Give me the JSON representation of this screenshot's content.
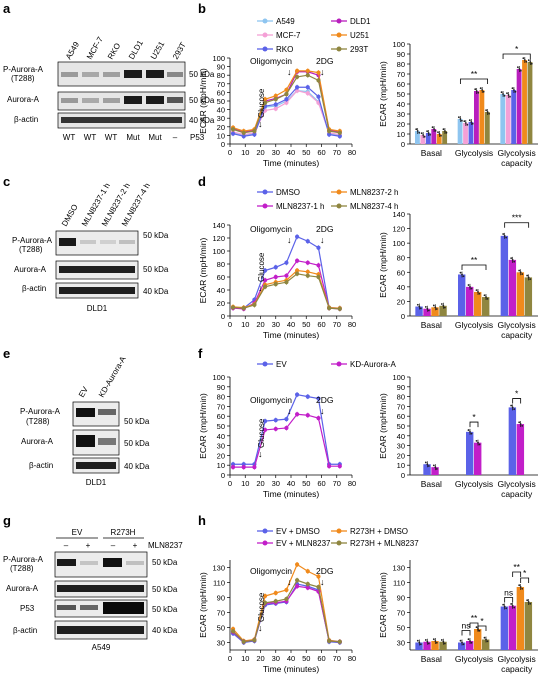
{
  "panel_letters": [
    "a",
    "b",
    "c",
    "d",
    "e",
    "f",
    "g",
    "h"
  ],
  "common": {
    "kda50": "50 kDa",
    "kda40": "40 kDa",
    "ecar_ylabel": "ECAR (mpH/min)",
    "time_xlabel": "Time (minutes)",
    "oligomycin": "Oligomycin",
    "glucose": "Glucose",
    "dg": "2DG",
    "arrow": "↓",
    "basal": "Basal",
    "glycolysis": "Glycolysis",
    "gly_cap_1": "Glycolysis",
    "gly_cap_2": "capacity"
  },
  "blot_a": {
    "lanes": [
      "A549",
      "MCF-7",
      "RKO",
      "DLD1",
      "U251",
      "293T"
    ],
    "labels": [
      "P-Aurora-A",
      "(T288)",
      "Aurora-A",
      "β-actin"
    ],
    "status": [
      "WT",
      "WT",
      "WT",
      "Mut",
      "Mut",
      "–"
    ],
    "p53": "P53"
  },
  "blot_c": {
    "lanes": [
      "DMSO",
      "MLN8237-1 h",
      "MLN8237-2 h",
      "MLN8237-4 h"
    ],
    "labels": [
      "P-Aurora-A",
      "(T288)",
      "Aurora-A",
      "β-actin"
    ],
    "cell": "DLD1"
  },
  "blot_e": {
    "lanes": [
      "EV",
      "KD-Aurora-A"
    ],
    "labels": [
      "P-Aurora-A",
      "(T288)",
      "Aurora-A",
      "β-actin"
    ],
    "cell": "DLD1"
  },
  "blot_g": {
    "groups": [
      "EV",
      "R273H"
    ],
    "mln": "MLN8237",
    "signs": [
      "–",
      "+",
      "–",
      "+"
    ],
    "labels": [
      "P-Aurora-A",
      "(T288)",
      "Aurora-A",
      "P53",
      "β-actin"
    ],
    "cell": "A549"
  },
  "colors": {
    "A549": "#8ec5f0",
    "DLD1": "#b81ebd",
    "MCF-7": "#f4a0d6",
    "U251": "#f08a1c",
    "RKO": "#5b62e8",
    "293T": "#8f8640",
    "blue": "#5b62e8",
    "magenta": "#c21fc9",
    "orange": "#f08a1c",
    "olive": "#8f8640"
  },
  "chart_data": [
    {
      "panel": "b-line",
      "type": "line",
      "legend": [
        "A549",
        "MCF-7",
        "RKO",
        "DLD1",
        "U251",
        "293T"
      ],
      "xlabel": "Time (minutes)",
      "ylabel": "ECAR (mpH/min)",
      "xlim": [
        0,
        80
      ],
      "ylim": [
        0,
        100
      ],
      "xticks": [
        0,
        10,
        20,
        30,
        40,
        50,
        60,
        70,
        80
      ],
      "yticks": [
        0,
        10,
        20,
        30,
        40,
        50,
        60,
        70,
        80,
        90,
        100
      ],
      "x": [
        2,
        9,
        16,
        23,
        30,
        37,
        44,
        51,
        58,
        65,
        72
      ],
      "series": [
        {
          "name": "A549",
          "values": [
            13,
            10,
            12,
            43,
            44,
            50,
            62,
            61,
            49,
            12,
            10
          ]
        },
        {
          "name": "MCF-7",
          "values": [
            14,
            11,
            13,
            39,
            41,
            48,
            62,
            59,
            48,
            13,
            11
          ]
        },
        {
          "name": "RKO",
          "values": [
            12,
            9,
            11,
            44,
            46,
            52,
            66,
            66,
            55,
            11,
            9
          ]
        },
        {
          "name": "DLD1",
          "values": [
            18,
            14,
            16,
            50,
            53,
            58,
            84,
            84,
            80,
            16,
            14
          ]
        },
        {
          "name": "U251",
          "values": [
            19,
            15,
            17,
            52,
            56,
            63,
            85,
            85,
            83,
            17,
            15
          ]
        },
        {
          "name": "293T",
          "values": [
            17,
            13,
            15,
            48,
            52,
            58,
            78,
            80,
            74,
            15,
            13
          ]
        }
      ]
    },
    {
      "panel": "b-bar",
      "type": "bar",
      "categories": [
        "Basal",
        "Glycolysis",
        "Glycolysis capacity"
      ],
      "ylabel": "ECAR (mpH/min)",
      "ylim": [
        0,
        100
      ],
      "yticks": [
        0,
        10,
        20,
        30,
        40,
        50,
        60,
        70,
        80,
        90,
        100
      ],
      "series": [
        {
          "name": "A549",
          "values": [
            13,
            25,
            50
          ]
        },
        {
          "name": "MCF-7",
          "values": [
            9,
            21,
            49
          ]
        },
        {
          "name": "RKO",
          "values": [
            11,
            22,
            54
          ]
        },
        {
          "name": "DLD1",
          "values": [
            15,
            53,
            75
          ]
        },
        {
          "name": "U251",
          "values": [
            10,
            54,
            84
          ]
        },
        {
          "name": "293T",
          "values": [
            13,
            32,
            82
          ]
        }
      ],
      "annotations": [
        "**",
        "*"
      ]
    },
    {
      "panel": "d-line",
      "type": "line",
      "legend": [
        "DMSO",
        "MLN8237-1 h",
        "MLN8237-2 h",
        "MLN8237-4 h"
      ],
      "xlabel": "Time (minutes)",
      "ylabel": "ECAR (mpH/min)",
      "xlim": [
        0,
        80
      ],
      "ylim": [
        0,
        140
      ],
      "xticks": [
        0,
        10,
        20,
        30,
        40,
        50,
        60,
        70,
        80
      ],
      "yticks": [
        0,
        20,
        40,
        60,
        80,
        100,
        120,
        140
      ],
      "x": [
        2,
        9,
        16,
        23,
        30,
        37,
        44,
        51,
        58,
        65,
        72
      ],
      "series": [
        {
          "name": "DMSO",
          "values": [
            13,
            12,
            25,
            70,
            75,
            82,
            122,
            115,
            105,
            13,
            12
          ]
        },
        {
          "name": "MLN8237-1 h",
          "values": [
            12,
            11,
            20,
            55,
            60,
            62,
            85,
            82,
            78,
            12,
            11
          ]
        },
        {
          "name": "MLN8237-2 h",
          "values": [
            14,
            13,
            18,
            48,
            52,
            55,
            70,
            68,
            64,
            13,
            12
          ]
        },
        {
          "name": "MLN8237-4 h",
          "values": [
            13,
            12,
            17,
            45,
            49,
            52,
            65,
            62,
            60,
            12,
            11
          ]
        }
      ]
    },
    {
      "panel": "d-bar",
      "type": "bar",
      "categories": [
        "Basal",
        "Glycolysis",
        "Glycolysis capacity"
      ],
      "ylabel": "ECAR (mpH/min)",
      "ylim": [
        0,
        140
      ],
      "yticks": [
        0,
        20,
        40,
        60,
        80,
        100,
        120,
        140
      ],
      "series": [
        {
          "name": "DMSO",
          "values": [
            13,
            57,
            110
          ]
        },
        {
          "name": "MLN8237-1 h",
          "values": [
            10,
            40,
            77
          ]
        },
        {
          "name": "MLN8237-2 h",
          "values": [
            12,
            33,
            60
          ]
        },
        {
          "name": "MLN8237-4 h",
          "values": [
            14,
            26,
            53
          ]
        }
      ],
      "annotations": [
        "**",
        "***"
      ]
    },
    {
      "panel": "f-line",
      "type": "line",
      "legend": [
        "EV",
        "KD-Aurora-A"
      ],
      "xlabel": "Time (minutes)",
      "ylabel": "ECAR (mpH/min)",
      "xlim": [
        0,
        80
      ],
      "ylim": [
        0,
        100
      ],
      "xticks": [
        0,
        10,
        20,
        30,
        40,
        50,
        60,
        70,
        80
      ],
      "yticks": [
        0,
        10,
        20,
        30,
        40,
        50,
        60,
        70,
        80,
        90,
        100
      ],
      "x": [
        2,
        9,
        16,
        23,
        30,
        37,
        44,
        51,
        58,
        65,
        72
      ],
      "series": [
        {
          "name": "EV",
          "values": [
            11,
            11,
            11,
            55,
            56,
            57,
            82,
            80,
            78,
            11,
            11
          ]
        },
        {
          "name": "KD-Aurora-A",
          "values": [
            8,
            8,
            8,
            46,
            47,
            48,
            62,
            61,
            58,
            9,
            9
          ]
        }
      ]
    },
    {
      "panel": "f-bar",
      "type": "bar",
      "categories": [
        "Basal",
        "Glycolysis",
        "Glycolysis capacity"
      ],
      "ylabel": "ECAR (mpH/min)",
      "ylim": [
        0,
        100
      ],
      "yticks": [
        0,
        10,
        20,
        30,
        40,
        50,
        60,
        70,
        80,
        90,
        100
      ],
      "series": [
        {
          "name": "EV",
          "values": [
            11,
            44,
            69
          ]
        },
        {
          "name": "KD-Aurora-A",
          "values": [
            8,
            33,
            52
          ]
        }
      ],
      "annotations": [
        "*",
        "*"
      ]
    },
    {
      "panel": "h-line",
      "type": "line",
      "legend": [
        "EV + DMSO",
        "R273H + DMSO",
        "EV + MLN8237",
        "R273H + MLN8237"
      ],
      "xlabel": "Time (minutes)",
      "ylabel": "ECAR (mpH/min)",
      "xlim": [
        0,
        80
      ],
      "ylim": [
        20,
        140
      ],
      "xticks": [
        0,
        10,
        20,
        30,
        40,
        50,
        60,
        70,
        80
      ],
      "yticks": [
        30,
        50,
        70,
        90,
        110,
        130
      ],
      "x": [
        2,
        9,
        16,
        23,
        30,
        37,
        44,
        51,
        58,
        65,
        72
      ],
      "series": [
        {
          "name": "EV + DMSO",
          "values": [
            42,
            30,
            32,
            80,
            82,
            84,
            108,
            105,
            100,
            31,
            30
          ]
        },
        {
          "name": "R273H + DMSO",
          "values": [
            48,
            32,
            34,
            92,
            96,
            100,
            134,
            125,
            118,
            33,
            31
          ]
        },
        {
          "name": "EV + MLN8237",
          "values": [
            44,
            31,
            33,
            82,
            83,
            85,
            105,
            103,
            98,
            32,
            31
          ]
        },
        {
          "name": "R273H + MLN8237",
          "values": [
            45,
            31,
            33,
            83,
            85,
            88,
            113,
            108,
            104,
            32,
            31
          ]
        }
      ]
    },
    {
      "panel": "h-bar",
      "type": "bar",
      "categories": [
        "Basal",
        "Glycolysis",
        "Glycolysis capacity"
      ],
      "ylabel": "ECAR (mpH/min)",
      "ylim": [
        20,
        140
      ],
      "yticks": [
        30,
        50,
        70,
        90,
        110,
        130
      ],
      "series": [
        {
          "name": "EV + DMSO",
          "values": [
            30,
            30,
            78
          ]
        },
        {
          "name": "EV + MLN8237",
          "values": [
            31,
            32,
            79
          ]
        },
        {
          "name": "R273H + DMSO",
          "values": [
            32,
            48,
            104
          ]
        },
        {
          "name": "R273H + MLN8237",
          "values": [
            31,
            34,
            84
          ]
        }
      ],
      "annotations": [
        "ns",
        "**",
        "*",
        "ns",
        "**",
        "*"
      ]
    }
  ]
}
